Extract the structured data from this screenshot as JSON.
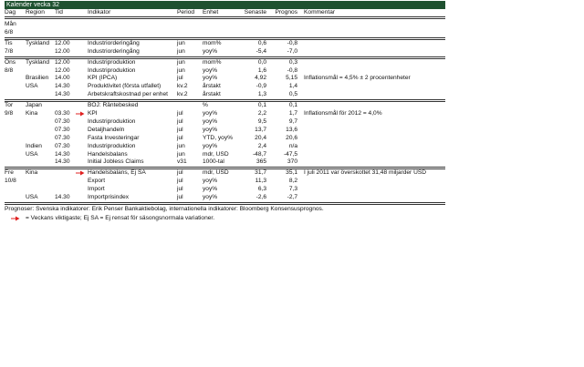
{
  "header": {
    "title": "Kalender vecka 32"
  },
  "columns": [
    "Dag",
    "Region",
    "Tid",
    "Indikator",
    "Period",
    "Enhet",
    "Senaste",
    "Prognos",
    "Kommentar"
  ],
  "days": [
    {
      "day": "Mån",
      "date": "6/8",
      "rows": []
    },
    {
      "day": "Tis",
      "date": "7/8",
      "rows": [
        {
          "region": "Tyskland",
          "time": "12.00",
          "indicator": "Industriorderingång",
          "period": "jun",
          "unit": "mom%",
          "latest": "0,6",
          "forecast": "-0,8"
        },
        {
          "time": "12.00",
          "indicator": "Industriorderingång",
          "period": "jun",
          "unit": "yoy%",
          "latest": "-5,4",
          "forecast": "-7,0"
        }
      ]
    },
    {
      "day": "Ons",
      "date": "8/8",
      "rows": [
        {
          "region": "Tyskland",
          "time": "12.00",
          "indicator": "Industriproduktion",
          "period": "jun",
          "unit": "mom%",
          "latest": "0,0",
          "forecast": "0,3"
        },
        {
          "time": "12.00",
          "indicator": "Industriproduktion",
          "period": "jun",
          "unit": "yoy%",
          "latest": "1,6",
          "forecast": "-0,8"
        },
        {
          "region": "Brasilien",
          "time": "14.00",
          "indicator": "KPI (IPCA)",
          "period": "jul",
          "unit": "yoy%",
          "latest": "4,92",
          "forecast": "5,15",
          "comment": "Inflationsmål = 4,5% ± 2 procentenheter"
        },
        {
          "region": "USA",
          "time": "14.30",
          "indicator": "Produktivitet (första utfallet)",
          "period": "kv.2",
          "unit": "årstakt",
          "latest": "-0,9",
          "forecast": "1,4"
        },
        {
          "time": "14.30",
          "indicator": "Arbetskraftskostnad per enhet",
          "period": "kv.2",
          "unit": "årstakt",
          "latest": "1,3",
          "forecast": "0,5"
        }
      ]
    },
    {
      "day": "Tor",
      "date": "9/8",
      "rows": [
        {
          "region": "Japan",
          "indicator": "BOJ: Räntebesked",
          "unit": "%",
          "latest": "0,1",
          "forecast": "0,1"
        },
        {
          "region": "Kina",
          "time": "03.30",
          "key": true,
          "indicator": "KPI",
          "period": "jul",
          "unit": "yoy%",
          "latest": "2,2",
          "forecast": "1,7",
          "comment": "Inflationsmål för 2012 = 4,0%"
        },
        {
          "time": "07.30",
          "indicator": "Industriproduktion",
          "period": "jul",
          "unit": "yoy%",
          "latest": "9,5",
          "forecast": "9,7"
        },
        {
          "time": "07.30",
          "indicator": "Detaljhandeln",
          "period": "jul",
          "unit": "yoy%",
          "latest": "13,7",
          "forecast": "13,6"
        },
        {
          "time": "07.30",
          "indicator": "Fasta Investeringar",
          "period": "jul",
          "unit": "YTD, yoy%",
          "latest": "20,4",
          "forecast": "20,6"
        },
        {
          "region": "Indien",
          "time": "07.30",
          "indicator": "Industriproduktion",
          "period": "jun",
          "unit": "yoy%",
          "latest": "2,4",
          "forecast": "n/a"
        },
        {
          "region": "USA",
          "time": "14.30",
          "indicator": "Handelsbalans",
          "period": "jun",
          "unit": "mdr, USD",
          "latest": "-48,7",
          "forecast": "-47,5"
        },
        {
          "time": "14.30",
          "indicator": "Initial Jobless Claims",
          "period": "v31",
          "unit": "1000-tal",
          "latest": "365",
          "forecast": "370"
        }
      ]
    },
    {
      "day": "Fre",
      "date": "10/8",
      "rows": [
        {
          "region": "Kina",
          "key": true,
          "indicator": "Handelsbalans, Ej SA",
          "period": "jul",
          "unit": "mdr, USD",
          "latest": "31,7",
          "forecast": "35,1",
          "comment": "I juli 2011 var överskottet  31,48 miljarder USD"
        },
        {
          "indicator": "Export",
          "period": "jul",
          "unit": "yoy%",
          "latest": "11,3",
          "forecast": "8,2"
        },
        {
          "indicator": "Import",
          "period": "jul",
          "unit": "yoy%",
          "latest": "6,3",
          "forecast": "7,3"
        },
        {
          "region": "USA",
          "time": "14.30",
          "indicator": "Importprisindex",
          "period": "jul",
          "unit": "yoy%",
          "latest": "-2,6",
          "forecast": "-2,7"
        }
      ]
    }
  ],
  "footer": {
    "source": "Prognoser: Svenska indikatorer: Erik Penser Bankaktiebolag, internationella indikatorer: Bloomberg Konsensusprognos.",
    "legend": "= Veckans viktigaste; Ej SA = Ej rensat för säsongsnormala variationer."
  }
}
